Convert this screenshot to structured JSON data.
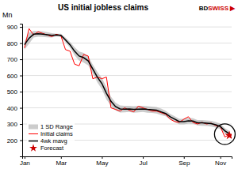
{
  "chart_data": {
    "type": "line",
    "title": "US initial jobless claims",
    "ylabel": "Mn",
    "categories": [
      "Jan",
      null,
      null,
      null,
      null,
      null,
      null,
      null,
      "Mar",
      null,
      null,
      null,
      null,
      null,
      null,
      null,
      null,
      "May",
      null,
      null,
      null,
      null,
      null,
      null,
      null,
      null,
      "Jul",
      null,
      null,
      null,
      null,
      null,
      null,
      null,
      null,
      "Sep",
      null,
      null,
      null,
      null,
      null,
      null,
      null,
      "Nov",
      null,
      null
    ],
    "ylim": [
      100,
      920
    ],
    "yticks": [
      200,
      300,
      400,
      500,
      600,
      700,
      800,
      900
    ],
    "grid": true,
    "legend": "lower left",
    "series": [
      {
        "name": "1 SD Range",
        "type": "area",
        "color": "#aaaaaa",
        "upper": [
          810,
          865,
          875,
          875,
          872,
          868,
          862,
          858,
          858,
          835,
          808,
          775,
          748,
          740,
          718,
          668,
          622,
          585,
          528,
          468,
          432,
          415,
          412,
          412,
          410,
          412,
          412,
          410,
          408,
          405,
          395,
          382,
          362,
          348,
          332,
          332,
          338,
          335,
          325,
          325,
          322,
          320,
          312,
          302,
          275,
          256
        ],
        "lower": [
          760,
          795,
          835,
          840,
          838,
          836,
          834,
          842,
          838,
          805,
          772,
          725,
          692,
          680,
          662,
          612,
          558,
          515,
          452,
          412,
          384,
          371,
          372,
          374,
          370,
          372,
          374,
          370,
          368,
          365,
          355,
          348,
          328,
          312,
          298,
          298,
          302,
          301,
          291,
          289,
          288,
          284,
          278,
          268,
          241,
          224
        ]
      },
      {
        "name": "Initial claims",
        "type": "line",
        "color": "#ff0000",
        "values": [
          770,
          890,
          850,
          870,
          860,
          850,
          840,
          855,
          845,
          760,
          750,
          670,
          660,
          730,
          720,
          580,
          590,
          580,
          590,
          400,
          390,
          380,
          400,
          385,
          375,
          410,
          400,
          390,
          380,
          380,
          370,
          360,
          330,
          315,
          310,
          330,
          345,
          310,
          300,
          310,
          300,
          305,
          290,
          285,
          220,
          235
        ]
      },
      {
        "name": "4wk mavg",
        "type": "line",
        "color": "#000000",
        "values": [
          790,
          830,
          855,
          858,
          855,
          852,
          848,
          850,
          848,
          820,
          790,
          750,
          720,
          710,
          690,
          640,
          590,
          550,
          490,
          440,
          408,
          393,
          392,
          393,
          390,
          392,
          393,
          390,
          388,
          385,
          375,
          365,
          345,
          330,
          315,
          315,
          320,
          318,
          308,
          307,
          305,
          302,
          295,
          285,
          258,
          240
        ]
      },
      {
        "name": "Forecast",
        "type": "scatter",
        "marker": "star",
        "color": "#cc0000",
        "values": [
          null,
          null,
          null,
          null,
          null,
          null,
          null,
          null,
          null,
          null,
          null,
          null,
          null,
          null,
          null,
          null,
          null,
          null,
          null,
          null,
          null,
          null,
          null,
          null,
          null,
          null,
          null,
          null,
          null,
          null,
          null,
          null,
          null,
          null,
          null,
          null,
          null,
          null,
          null,
          null,
          null,
          null,
          null,
          null,
          null,
          230
        ]
      }
    ],
    "annotations": [
      {
        "text": "BD",
        "color": "#000000"
      },
      {
        "text": "SWISS",
        "color": "#cc0000"
      },
      {
        "text": "▶",
        "color": "#cc0000"
      },
      {
        "shape": "circle",
        "x": 44,
        "y": 237
      }
    ]
  }
}
